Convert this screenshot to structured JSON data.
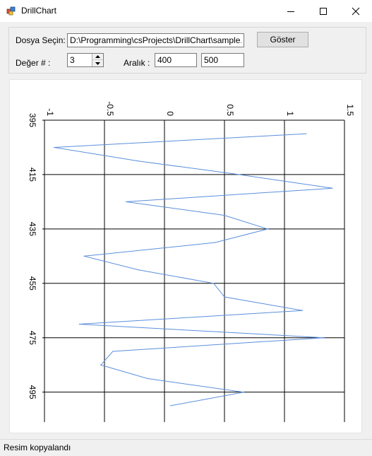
{
  "window": {
    "title": "DrillChart"
  },
  "controls": {
    "file_label": "Dosya Seçin:",
    "file_path": "D:\\Programming\\csProjects\\DrillChart\\sample.las",
    "show_button": "Göster",
    "value_label": "Değer # :",
    "value_number": "3",
    "range_label": "Aralık :",
    "range_from": "400",
    "range_to": "500"
  },
  "status": {
    "text": "Resim kopyalandı"
  },
  "chart_data": {
    "type": "line",
    "orientation": "vertical-depth",
    "x_ticks": [
      "-1",
      "-0.5",
      "0",
      "0.5",
      "1",
      "1.5"
    ],
    "y_ticks": [
      "395",
      "415",
      "435",
      "455",
      "475",
      "495"
    ],
    "xlim": [
      -1,
      1.5
    ],
    "ylim": [
      395,
      506
    ],
    "grid": true,
    "line_color": "#5b8fdc",
    "points": [
      {
        "x": 1.18,
        "y": 400
      },
      {
        "x": -0.92,
        "y": 405
      },
      {
        "x": -0.22,
        "y": 410
      },
      {
        "x": 0.62,
        "y": 415
      },
      {
        "x": 1.4,
        "y": 420
      },
      {
        "x": -0.32,
        "y": 425
      },
      {
        "x": 0.5,
        "y": 430
      },
      {
        "x": 0.86,
        "y": 435
      },
      {
        "x": 0.42,
        "y": 440
      },
      {
        "x": -0.67,
        "y": 445
      },
      {
        "x": -0.22,
        "y": 450
      },
      {
        "x": 0.41,
        "y": 455
      },
      {
        "x": 0.5,
        "y": 460
      },
      {
        "x": 1.15,
        "y": 465
      },
      {
        "x": -0.71,
        "y": 470
      },
      {
        "x": 1.33,
        "y": 475
      },
      {
        "x": -0.43,
        "y": 480
      },
      {
        "x": -0.53,
        "y": 485
      },
      {
        "x": -0.14,
        "y": 490
      },
      {
        "x": 0.66,
        "y": 495
      },
      {
        "x": 0.05,
        "y": 500
      }
    ]
  }
}
